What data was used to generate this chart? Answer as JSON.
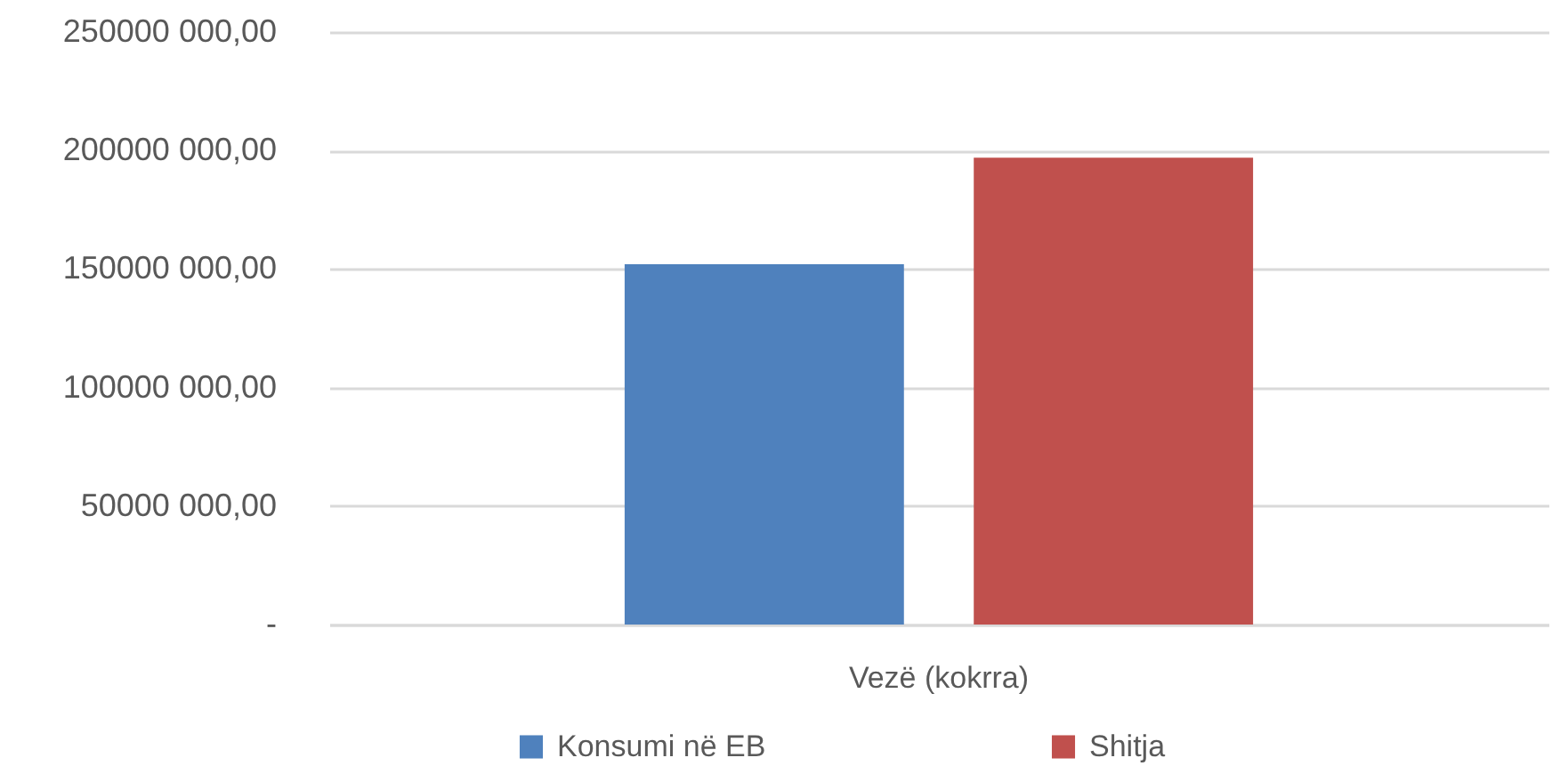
{
  "chart_data": {
    "type": "bar",
    "categories": [
      "Vezë (kokrra)"
    ],
    "series": [
      {
        "name": "Konsumi në EB",
        "color": "#4f81bd",
        "values": [
          152000000
        ]
      },
      {
        "name": "Shitja",
        "color": "#c0504d",
        "values": [
          197000000
        ]
      }
    ],
    "ylim": [
      0,
      250000000
    ],
    "yticks": [
      {
        "value": 0,
        "label": "-"
      },
      {
        "value": 50000000,
        "label": "50000 000,00"
      },
      {
        "value": 100000000,
        "label": "100000 000,00"
      },
      {
        "value": 150000000,
        "label": "150000 000,00"
      },
      {
        "value": 200000000,
        "label": "200000 000,00"
      },
      {
        "value": 250000000,
        "label": "250000 000,00"
      }
    ],
    "grid": "y",
    "legend": "bottom"
  }
}
